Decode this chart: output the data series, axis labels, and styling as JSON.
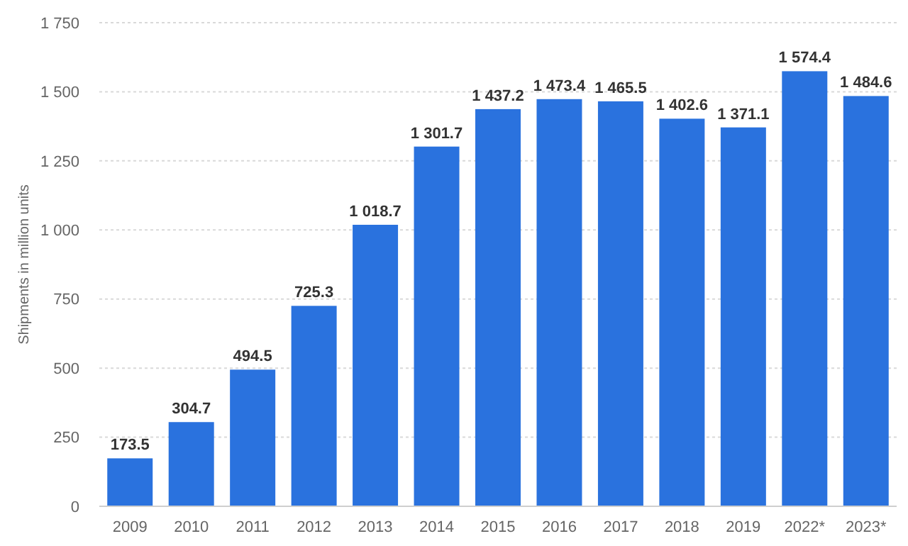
{
  "chart_data": {
    "type": "bar",
    "ylabel": "Shipments in million units",
    "categories": [
      "2009",
      "2010",
      "2011",
      "2012",
      "2013",
      "2014",
      "2015",
      "2016",
      "2017",
      "2018",
      "2019",
      "2022*",
      "2023*"
    ],
    "values": [
      173.5,
      304.7,
      494.5,
      725.3,
      1018.7,
      1301.7,
      1437.2,
      1473.4,
      1465.5,
      1402.6,
      1371.1,
      1574.4,
      1484.6
    ],
    "value_labels": [
      "173.5",
      "304.7",
      "494.5",
      "725.3",
      "1 018.7",
      "1 301.7",
      "1 437.2",
      "1 473.4",
      "1 465.5",
      "1 402.6",
      "1 371.1",
      "1 574.4",
      "1 484.6"
    ],
    "color": "#2a72de",
    "ylim": [
      0,
      1750
    ],
    "yticks": [
      0,
      250,
      500,
      750,
      {
        "value": 1000,
        "label": "1 000"
      },
      {
        "value": 1250,
        "label": "1 250"
      },
      {
        "value": 1500,
        "label": "1 500"
      },
      {
        "value": 1750,
        "label": "1 750"
      }
    ],
    "grid": "y"
  }
}
